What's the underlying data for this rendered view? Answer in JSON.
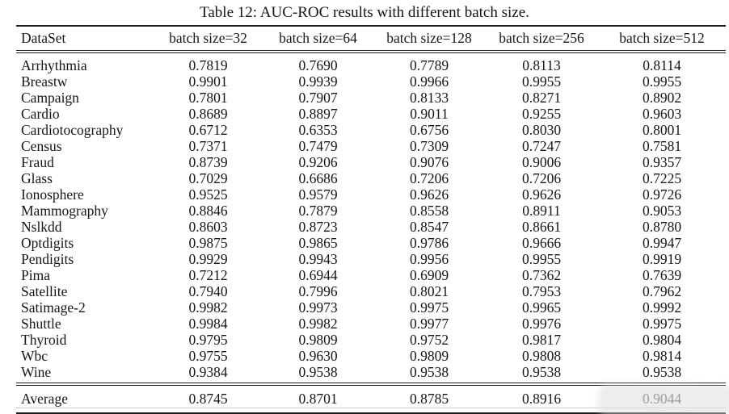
{
  "title": "Table 12: AUC-ROC results with different batch size.",
  "table": {
    "columns": [
      "DataSet",
      "batch size=32",
      "batch size=64",
      "batch size=128",
      "batch size=256",
      "batch size=512"
    ],
    "rows": [
      [
        "Arrhythmia",
        "0.7819",
        "0.7690",
        "0.7789",
        "0.8113",
        "0.8114"
      ],
      [
        "Breastw",
        "0.9901",
        "0.9939",
        "0.9966",
        "0.9955",
        "0.9955"
      ],
      [
        "Campaign",
        "0.7801",
        "0.7907",
        "0.8133",
        "0.8271",
        "0.8902"
      ],
      [
        "Cardio",
        "0.8689",
        "0.8897",
        "0.9011",
        "0.9255",
        "0.9603"
      ],
      [
        "Cardiotocography",
        "0.6712",
        "0.6353",
        "0.6756",
        "0.8030",
        "0.8001"
      ],
      [
        "Census",
        "0.7371",
        "0.7479",
        "0.7309",
        "0.7247",
        "0.7581"
      ],
      [
        "Fraud",
        "0.8739",
        "0.9206",
        "0.9076",
        "0.9006",
        "0.9357"
      ],
      [
        "Glass",
        "0.7029",
        "0.6686",
        "0.7206",
        "0.7206",
        "0.7225"
      ],
      [
        "Ionosphere",
        "0.9525",
        "0.9579",
        "0.9626",
        "0.9626",
        "0.9726"
      ],
      [
        "Mammography",
        "0.8846",
        "0.7879",
        "0.8558",
        "0.8911",
        "0.9053"
      ],
      [
        "Nslkdd",
        "0.8603",
        "0.8723",
        "0.8547",
        "0.8661",
        "0.8780"
      ],
      [
        "Optdigits",
        "0.9875",
        "0.9865",
        "0.9786",
        "0.9666",
        "0.9947"
      ],
      [
        "Pendigits",
        "0.9929",
        "0.9943",
        "0.9956",
        "0.9955",
        "0.9919"
      ],
      [
        "Pima",
        "0.7212",
        "0.6944",
        "0.6909",
        "0.7362",
        "0.7639"
      ],
      [
        "Satellite",
        "0.7940",
        "0.7996",
        "0.8021",
        "0.7953",
        "0.7962"
      ],
      [
        "Satimage-2",
        "0.9982",
        "0.9973",
        "0.9975",
        "0.9965",
        "0.9992"
      ],
      [
        "Shuttle",
        "0.9984",
        "0.9982",
        "0.9977",
        "0.9976",
        "0.9975"
      ],
      [
        "Thyroid",
        "0.9795",
        "0.9809",
        "0.9752",
        "0.9817",
        "0.9804"
      ],
      [
        "Wbc",
        "0.9755",
        "0.9630",
        "0.9809",
        "0.9808",
        "0.9814"
      ],
      [
        "Wine",
        "0.9384",
        "0.9538",
        "0.9538",
        "0.9538",
        "0.9538"
      ]
    ],
    "footer": [
      "Average",
      "0.8745",
      "0.8701",
      "0.8785",
      "0.8916",
      "0.9044"
    ]
  }
}
